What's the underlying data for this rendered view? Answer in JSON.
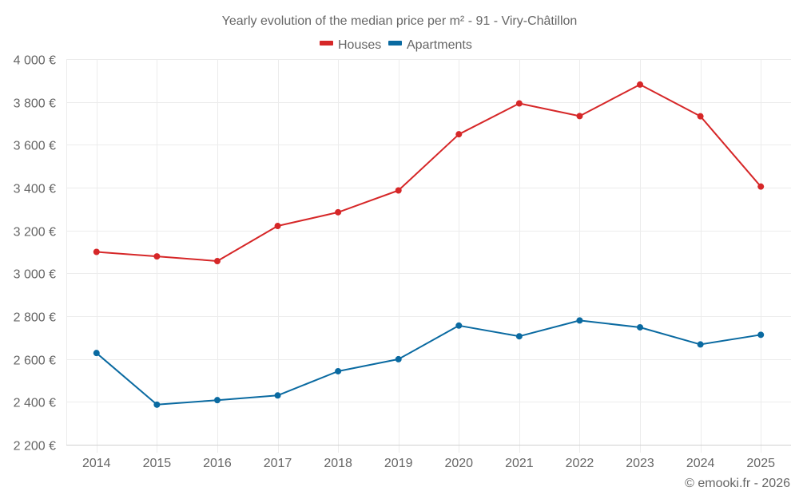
{
  "chart_data": {
    "type": "line",
    "title": "Yearly evolution of the median price per m² - 91 - Viry-Châtillon",
    "xlabel": "",
    "ylabel": "",
    "categories": [
      "2014",
      "2015",
      "2016",
      "2017",
      "2018",
      "2019",
      "2020",
      "2021",
      "2022",
      "2023",
      "2024",
      "2025"
    ],
    "ylim": [
      2200,
      4000
    ],
    "yticks": [
      2200,
      2400,
      2600,
      2800,
      3000,
      3200,
      3400,
      3600,
      3800,
      4000
    ],
    "ytick_labels": [
      "2 200 €",
      "2 400 €",
      "2 600 €",
      "2 800 €",
      "3 000 €",
      "3 200 €",
      "3 400 €",
      "3 600 €",
      "3 800 €",
      "4 000 €"
    ],
    "grid": true,
    "legend_position": "top-center",
    "series": [
      {
        "name": "Houses",
        "color": "#d62728",
        "values": [
          3100,
          3079,
          3057,
          3221,
          3285,
          3387,
          3649,
          3793,
          3734,
          3881,
          3733,
          3405
        ]
      },
      {
        "name": "Apartments",
        "color": "#0a6aa1",
        "values": [
          2628,
          2387,
          2408,
          2430,
          2543,
          2599,
          2756,
          2706,
          2780,
          2748,
          2668,
          2713
        ]
      }
    ],
    "credit": "© emooki.fr - 2026"
  }
}
